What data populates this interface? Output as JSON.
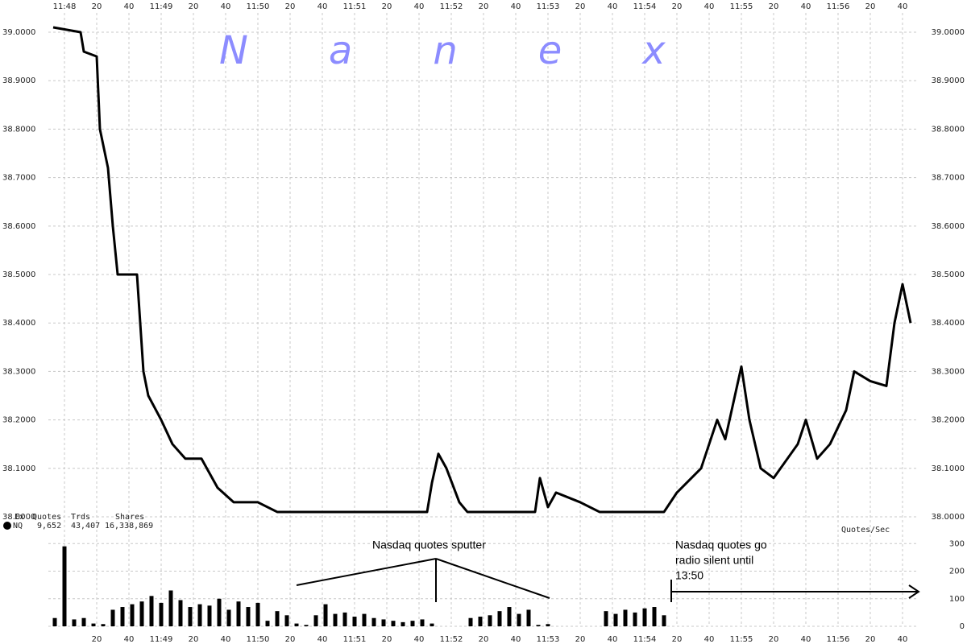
{
  "chart_data": [
    {
      "type": "line",
      "watermark": "Nanex",
      "x": [
        42473,
        42490,
        42492,
        42500,
        42502,
        42507,
        42510,
        42513,
        42525,
        42529,
        42532,
        42540,
        42547,
        42555,
        42565,
        42575,
        42585,
        42600,
        42612,
        42705,
        42708,
        42712,
        42717,
        42725,
        42730,
        42772,
        42775,
        42780,
        42785,
        42800,
        42812,
        42852,
        42860,
        42875,
        42885,
        42890,
        42900,
        42905,
        42912,
        42920,
        42935,
        42940,
        42947,
        42955,
        42965,
        42970,
        42980,
        42990,
        42995,
        43000,
        43005
      ],
      "series": [
        {
          "color": "#000000",
          "values": [
            39.01,
            39.0,
            38.96,
            38.95,
            38.8,
            38.72,
            38.6,
            38.5,
            38.5,
            38.3,
            38.25,
            38.2,
            38.15,
            38.12,
            38.12,
            38.06,
            38.03,
            38.03,
            38.01,
            38.01,
            38.07,
            38.13,
            38.1,
            38.03,
            38.01,
            38.01,
            38.08,
            38.02,
            38.05,
            38.03,
            38.01,
            38.01,
            38.05,
            38.1,
            38.2,
            38.16,
            38.31,
            38.2,
            38.1,
            38.08,
            38.15,
            38.2,
            38.12,
            38.15,
            38.22,
            38.3,
            38.28,
            38.27,
            38.4,
            38.48,
            38.4
          ]
        }
      ],
      "xlim": [
        42470,
        43010
      ],
      "xticks": [
        {
          "value": 42480,
          "label": "11:48"
        },
        {
          "value": 42500,
          "label": "20"
        },
        {
          "value": 42520,
          "label": "40"
        },
        {
          "value": 42540,
          "label": "11:49"
        },
        {
          "value": 42560,
          "label": "20"
        },
        {
          "value": 42580,
          "label": "40"
        },
        {
          "value": 42600,
          "label": "11:50"
        },
        {
          "value": 42620,
          "label": "20"
        },
        {
          "value": 42640,
          "label": "40"
        },
        {
          "value": 42660,
          "label": "11:51"
        },
        {
          "value": 42680,
          "label": "20"
        },
        {
          "value": 42700,
          "label": "40"
        },
        {
          "value": 42720,
          "label": "11:52"
        },
        {
          "value": 42740,
          "label": "20"
        },
        {
          "value": 42760,
          "label": "40"
        },
        {
          "value": 42780,
          "label": "11:53"
        },
        {
          "value": 42800,
          "label": "20"
        },
        {
          "value": 42820,
          "label": "40"
        },
        {
          "value": 42840,
          "label": "11:54"
        },
        {
          "value": 42860,
          "label": "20"
        },
        {
          "value": 42880,
          "label": "40"
        },
        {
          "value": 42900,
          "label": "11:55"
        },
        {
          "value": 42920,
          "label": "20"
        },
        {
          "value": 42940,
          "label": "40"
        },
        {
          "value": 42960,
          "label": "11:56"
        },
        {
          "value": 42980,
          "label": "20"
        },
        {
          "value": 43000,
          "label": "40"
        }
      ],
      "ylim": [
        37.99,
        39.02
      ],
      "yticks": [
        {
          "value": 38.0,
          "label": "38.0000"
        },
        {
          "value": 38.1,
          "label": "38.1000"
        },
        {
          "value": 38.2,
          "label": "38.2000"
        },
        {
          "value": 38.3,
          "label": "38.3000"
        },
        {
          "value": 38.4,
          "label": "38.4000"
        },
        {
          "value": 38.5,
          "label": "38.5000"
        },
        {
          "value": 38.6,
          "label": "38.6000"
        },
        {
          "value": 38.7,
          "label": "38.7000"
        },
        {
          "value": 38.8,
          "label": "38.8000"
        },
        {
          "value": 38.9,
          "label": "38.9000"
        },
        {
          "value": 39.0,
          "label": "39.0000"
        }
      ],
      "grid": true
    },
    {
      "type": "bar",
      "ylabel": "Quotes/Sec",
      "x": [
        42474,
        42480,
        42486,
        42492,
        42498,
        42504,
        42510,
        42516,
        42522,
        42528,
        42534,
        42540,
        42546,
        42552,
        42558,
        42564,
        42570,
        42576,
        42582,
        42588,
        42594,
        42600,
        42606,
        42612,
        42618,
        42624,
        42630,
        42636,
        42642,
        42648,
        42654,
        42660,
        42666,
        42672,
        42678,
        42684,
        42690,
        42696,
        42702,
        42708,
        42714,
        42720,
        42726,
        42732,
        42738,
        42744,
        42750,
        42756,
        42762,
        42768,
        42774,
        42780,
        42786,
        42792,
        42798,
        42804,
        42810,
        42816,
        42822,
        42828,
        42834,
        42840,
        42846,
        42852
      ],
      "values": [
        30,
        290,
        25,
        30,
        10,
        8,
        60,
        70,
        80,
        90,
        110,
        85,
        130,
        95,
        70,
        80,
        75,
        100,
        60,
        90,
        70,
        85,
        20,
        55,
        40,
        10,
        5,
        40,
        80,
        45,
        50,
        35,
        45,
        30,
        25,
        20,
        15,
        20,
        25,
        10,
        0,
        0,
        0,
        30,
        35,
        40,
        55,
        70,
        45,
        60,
        5,
        8,
        0,
        0,
        0,
        0,
        0,
        55,
        45,
        60,
        50,
        65,
        70,
        40
      ],
      "color": "#000000",
      "xlim": [
        42470,
        43010
      ],
      "ylim": [
        0,
        330
      ],
      "yticks": [
        0,
        100,
        200,
        300
      ],
      "grid": true
    }
  ],
  "stats": {
    "headers": [
      "Ex",
      "Quotes",
      "Trds",
      "Shares"
    ],
    "row": [
      "NQ",
      "9,652",
      "43,407",
      "16,338,869"
    ]
  },
  "annotations": {
    "sputter": "Nasdaq quotes sputter",
    "silent": [
      "Nasdaq quotes go",
      "radio silent until",
      "13:50"
    ]
  }
}
